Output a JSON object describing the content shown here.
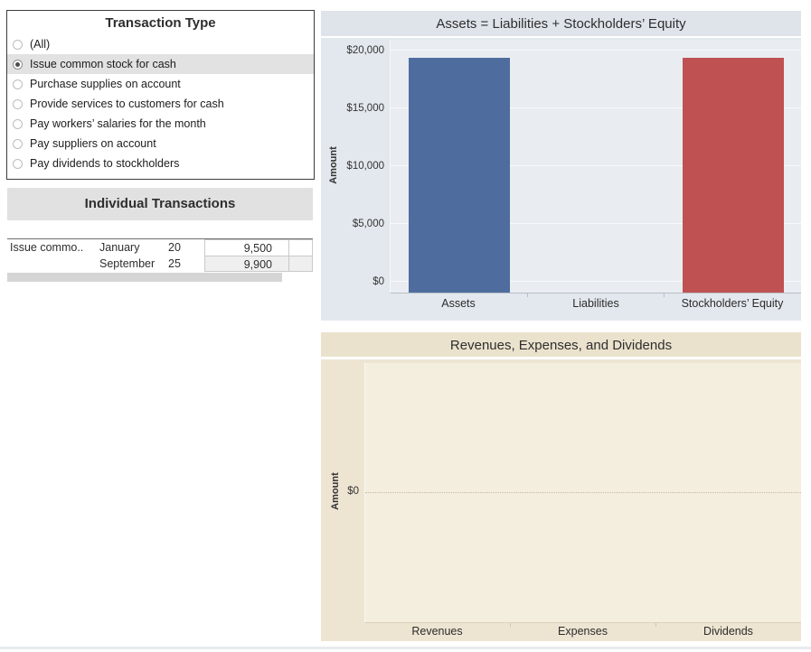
{
  "filter_panel": {
    "title": "Transaction Type",
    "options": [
      {
        "label": "(All)",
        "selected": false
      },
      {
        "label": "Issue common stock for cash",
        "selected": true
      },
      {
        "label": "Purchase supplies on account",
        "selected": false
      },
      {
        "label": "Provide services to customers for cash",
        "selected": false
      },
      {
        "label": "Pay workers’ salaries for the month",
        "selected": false
      },
      {
        "label": "Pay suppliers on account",
        "selected": false
      },
      {
        "label": "Pay dividends to stockholders",
        "selected": false
      }
    ]
  },
  "transactions": {
    "title": "Individual Transactions",
    "rows": [
      {
        "type": "Issue commo..",
        "month": "January",
        "day": "20",
        "amount": "9,500"
      },
      {
        "type": "",
        "month": "September",
        "day": "25",
        "amount": "9,900"
      }
    ]
  },
  "chart_data": [
    {
      "type": "bar",
      "title": "Assets = Liabilities + Stockholders’ Equity",
      "categories": [
        "Assets",
        "Liabilities",
        "Stockholders’ Equity"
      ],
      "values": [
        19400,
        0,
        19400
      ],
      "bar_colors": [
        "#4e6d9e",
        "#4e6d9e",
        "#c05152"
      ],
      "xlabel": "",
      "ylabel": "Amount",
      "ylim": [
        0,
        20000
      ],
      "yticks": [
        0,
        5000,
        10000,
        15000,
        20000
      ],
      "ytick_labels": [
        "$0",
        "$5,000",
        "$10,000",
        "$15,000",
        "$20,000"
      ],
      "grid": true,
      "legend": false
    },
    {
      "type": "bar",
      "title": "Revenues, Expenses, and Dividends",
      "categories": [
        "Revenues",
        "Expenses",
        "Dividends"
      ],
      "values": [
        0,
        0,
        0
      ],
      "xlabel": "",
      "ylabel": "Amount",
      "yticks": [
        0
      ],
      "ytick_labels": [
        "$0"
      ],
      "zero_line": "dotted",
      "grid": false,
      "legend": false
    }
  ]
}
